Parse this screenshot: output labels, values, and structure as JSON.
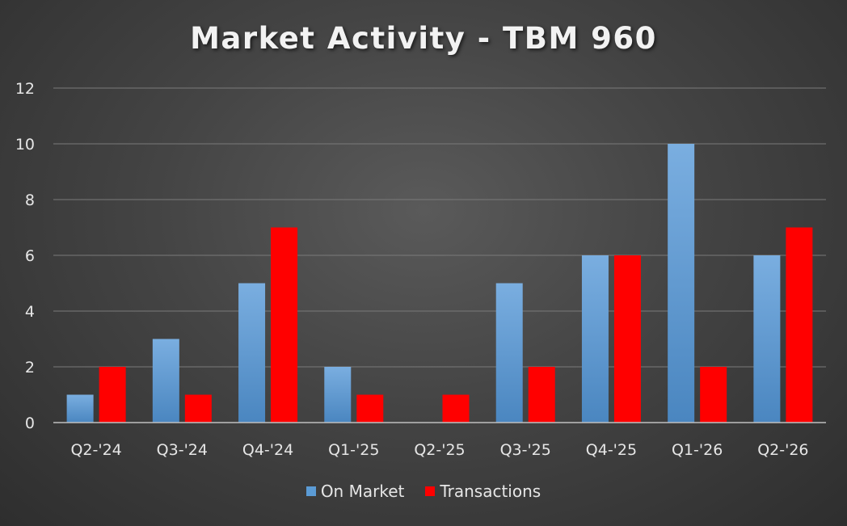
{
  "chart_data": {
    "type": "bar",
    "title": "Market Activity - TBM 960",
    "xlabel": "",
    "ylabel": "",
    "categories": [
      "Q2-'24",
      "Q3-'24",
      "Q4-'24",
      "Q1-'25",
      "Q2-'25",
      "Q3-'25",
      "Q4-'25",
      "Q1-'26",
      "Q2-'26"
    ],
    "series": [
      {
        "name": "On Market",
        "values": [
          1,
          3,
          5,
          2,
          0,
          5,
          6,
          10,
          6
        ],
        "color": "#5b9bd5"
      },
      {
        "name": "Transactions",
        "values": [
          2,
          1,
          7,
          1,
          1,
          2,
          6,
          2,
          7
        ],
        "color": "#ff0000"
      }
    ],
    "ylim": [
      0,
      12
    ],
    "yticks": [
      "0",
      "2",
      "4",
      "6",
      "8",
      "10",
      "12"
    ],
    "grid": true,
    "legend_position": "bottom"
  }
}
